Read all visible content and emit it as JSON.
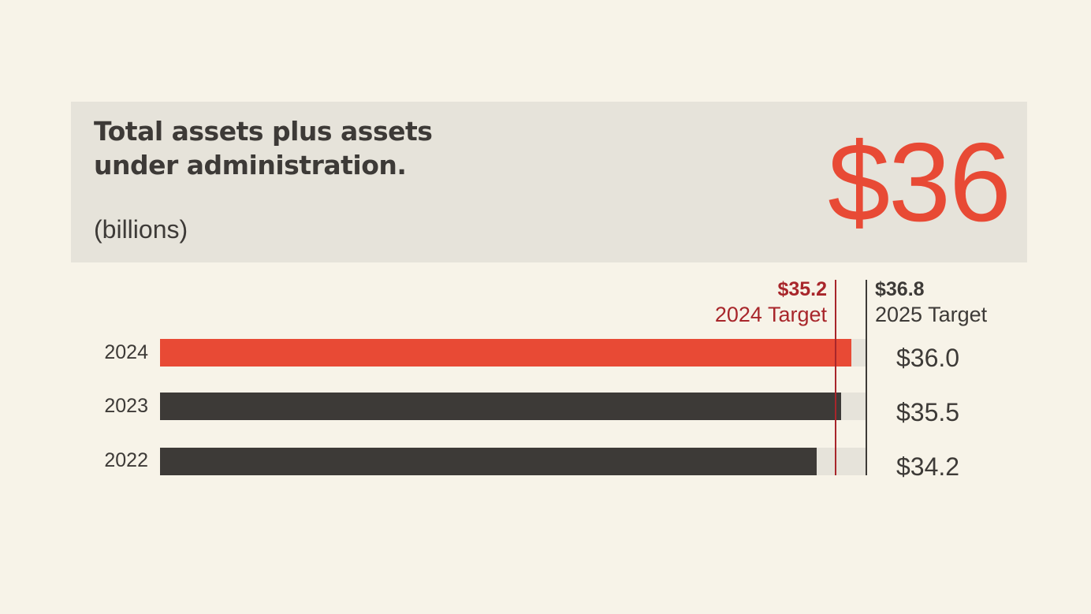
{
  "header": {
    "title": "Total assets plus assets under administration.",
    "unit": "(billions)",
    "headline_value": "$36"
  },
  "colors": {
    "background": "#f7f3e8",
    "panel": "#e6e3da",
    "accent": "#e84a35",
    "dark": "#3d3a37",
    "target_2024": "#a8262b",
    "target_2025": "#3d3a37",
    "track": "#e6e3da"
  },
  "targets": [
    {
      "value_label": "$35.2",
      "name": "2024 Target",
      "value": 35.2
    },
    {
      "value_label": "$36.8",
      "name": "2025 Target",
      "value": 36.8
    }
  ],
  "bars": [
    {
      "year": "2024",
      "value": 36.0,
      "value_label": "$36.0",
      "highlight": true
    },
    {
      "year": "2023",
      "value": 35.5,
      "value_label": "$35.5",
      "highlight": false
    },
    {
      "year": "2022",
      "value": 34.2,
      "value_label": "$34.2",
      "highlight": false
    }
  ],
  "chart_data": {
    "type": "bar",
    "orientation": "horizontal",
    "title": "Total assets plus assets under administration.",
    "subtitle": "(billions)",
    "headline": "$36",
    "categories": [
      "2024",
      "2023",
      "2022"
    ],
    "values": [
      36.0,
      35.5,
      34.2
    ],
    "value_labels": [
      "$36.0",
      "$35.5",
      "$34.2"
    ],
    "xlabel": "",
    "ylabel": "",
    "xlim": [
      0,
      36.8
    ],
    "grid": false,
    "legend": null,
    "reference_lines": [
      {
        "value": 35.2,
        "label": "2024 Target",
        "value_label": "$35.2",
        "color": "#a8262b"
      },
      {
        "value": 36.8,
        "label": "2025 Target",
        "value_label": "$36.8",
        "color": "#3d3a37"
      }
    ],
    "bar_colors": [
      "#e84a35",
      "#3d3a37",
      "#3d3a37"
    ]
  }
}
